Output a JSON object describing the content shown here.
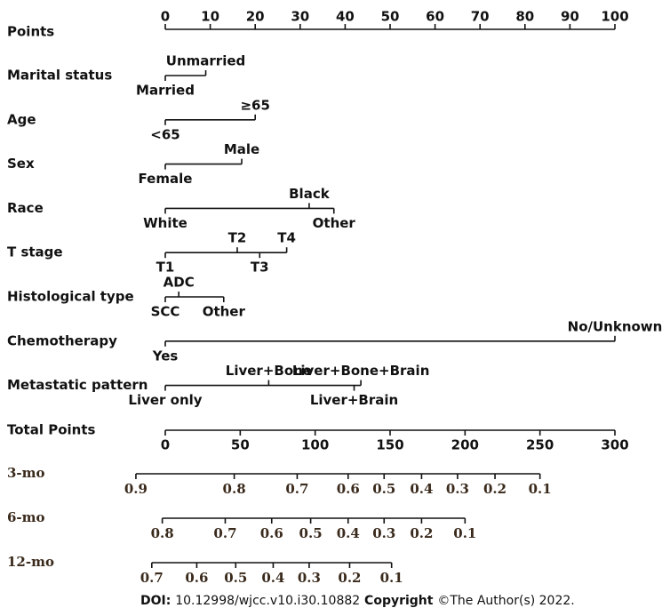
{
  "chart_data": {
    "type": "nomogram",
    "points_axis": {
      "name": "Points",
      "lim": [
        0,
        100
      ],
      "ticks": [
        0,
        10,
        20,
        30,
        40,
        50,
        60,
        70,
        80,
        90,
        100
      ]
    },
    "variables": [
      {
        "name": "Marital status",
        "levels": [
          {
            "label": "Married",
            "points": 0,
            "position": "below"
          },
          {
            "label": "Unmarried",
            "points": 9,
            "position": "above"
          }
        ]
      },
      {
        "name": "Age",
        "levels": [
          {
            "label": "<65",
            "points": 0,
            "position": "below"
          },
          {
            "label": "≥65",
            "points": 20,
            "position": "above"
          }
        ]
      },
      {
        "name": "Sex",
        "levels": [
          {
            "label": "Female",
            "points": 0,
            "position": "below"
          },
          {
            "label": "Male",
            "points": 17,
            "position": "above"
          }
        ]
      },
      {
        "name": "Race",
        "levels": [
          {
            "label": "White",
            "points": 0,
            "position": "below"
          },
          {
            "label": "Black",
            "points": 32,
            "position": "above"
          },
          {
            "label": "Other",
            "points": 37.5,
            "position": "below"
          }
        ]
      },
      {
        "name": "T stage",
        "levels": [
          {
            "label": "T1",
            "points": 0,
            "position": "below"
          },
          {
            "label": "T2",
            "points": 16,
            "position": "above"
          },
          {
            "label": "T3",
            "points": 21,
            "position": "below"
          },
          {
            "label": "T4",
            "points": 27,
            "position": "above"
          }
        ]
      },
      {
        "name": "Histological type",
        "levels": [
          {
            "label": "SCC",
            "points": 0,
            "position": "below"
          },
          {
            "label": "ADC",
            "points": 3,
            "position": "above"
          },
          {
            "label": "Other",
            "points": 13,
            "position": "below"
          }
        ]
      },
      {
        "name": "Chemotherapy",
        "levels": [
          {
            "label": "Yes",
            "points": 0,
            "position": "below"
          },
          {
            "label": "No/Unknown",
            "points": 100,
            "position": "above"
          }
        ]
      },
      {
        "name": "Metastatic pattern",
        "levels": [
          {
            "label": "Liver only",
            "points": 0,
            "position": "below"
          },
          {
            "label": "Liver+Bone",
            "points": 23,
            "position": "above"
          },
          {
            "label": "Liver+Brain",
            "points": 42,
            "position": "below"
          },
          {
            "label": "Liver+Bone+Brain",
            "points": 43.5,
            "position": "above"
          }
        ]
      }
    ],
    "total_axis": {
      "name": "Total Points",
      "lim": [
        0,
        300
      ],
      "ticks": [
        0,
        50,
        100,
        150,
        200,
        250,
        300
      ]
    },
    "probability_scales": [
      {
        "name": "3-mo",
        "ticks": [
          0.9,
          0.8,
          0.7,
          0.6,
          0.5,
          0.4,
          0.3,
          0.2,
          0.1
        ],
        "total_points": [
          -19.6,
          46,
          88,
          122,
          146,
          171,
          195,
          220,
          250
        ]
      },
      {
        "name": "6-mo",
        "ticks": [
          0.8,
          0.7,
          0.6,
          0.5,
          0.4,
          0.3,
          0.2,
          0.1
        ],
        "total_points": [
          -2,
          40,
          71,
          97,
          122,
          146,
          171,
          200
        ]
      },
      {
        "name": "12-mo",
        "ticks": [
          0.7,
          0.6,
          0.5,
          0.4,
          0.3,
          0.2,
          0.1
        ],
        "total_points": [
          -9,
          21,
          47,
          72,
          96,
          123,
          151
        ]
      }
    ]
  },
  "footer": {
    "doi_label": "DOI:",
    "doi": "10.12998/wjcc.v10.i30.10882",
    "copyright_label": "Copyright",
    "copyright": "©The Author(s) 2022."
  }
}
